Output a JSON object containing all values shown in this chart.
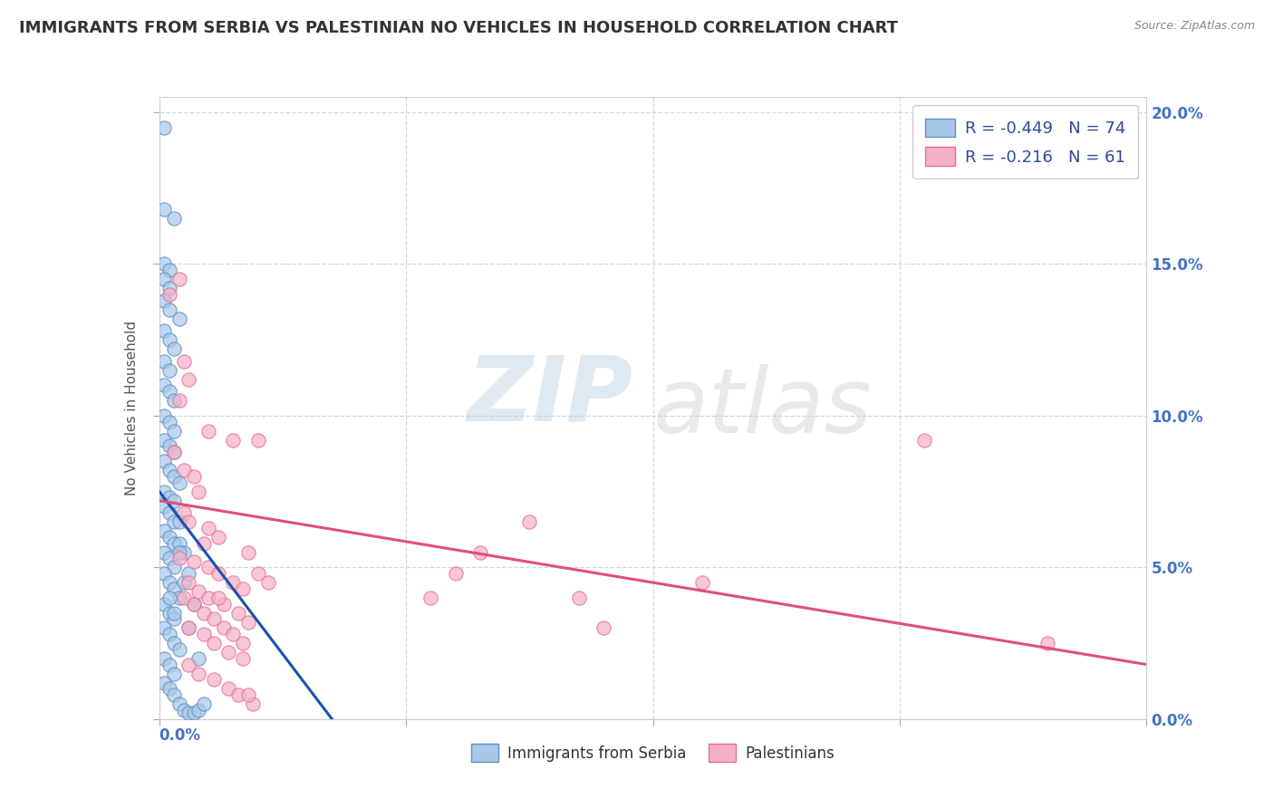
{
  "title": "IMMIGRANTS FROM SERBIA VS PALESTINIAN NO VEHICLES IN HOUSEHOLD CORRELATION CHART",
  "source_text": "Source: ZipAtlas.com",
  "ylabel": "No Vehicles in Household",
  "series1_label": "Immigrants from Serbia",
  "series2_label": "Palestinians",
  "series1_color": "#a8c8e8",
  "series2_color": "#f4b0c8",
  "series1_edge_color": "#6090c8",
  "series2_edge_color": "#e87090",
  "series1_line_color": "#1a50b0",
  "series2_line_color": "#e0507a",
  "xmin": 0.0,
  "xmax": 0.2,
  "ymin": 0.0,
  "ymax": 0.205,
  "background_color": "#ffffff",
  "grid_color": "#c8d8ea",
  "title_color": "#333333",
  "source_color": "#888888",
  "legend1_r": "-0.449",
  "legend1_n": "74",
  "legend2_r": "-0.216",
  "legend2_n": "61",
  "blue_line_x": [
    0.0,
    0.035
  ],
  "blue_line_y": [
    0.075,
    0.0
  ],
  "pink_line_x": [
    0.0,
    0.2
  ],
  "pink_line_y": [
    0.072,
    0.018
  ],
  "blue_scatter": [
    [
      0.001,
      0.195
    ],
    [
      0.001,
      0.168
    ],
    [
      0.003,
      0.165
    ],
    [
      0.001,
      0.15
    ],
    [
      0.002,
      0.148
    ],
    [
      0.001,
      0.145
    ],
    [
      0.002,
      0.142
    ],
    [
      0.001,
      0.138
    ],
    [
      0.002,
      0.135
    ],
    [
      0.004,
      0.132
    ],
    [
      0.001,
      0.128
    ],
    [
      0.002,
      0.125
    ],
    [
      0.003,
      0.122
    ],
    [
      0.001,
      0.118
    ],
    [
      0.002,
      0.115
    ],
    [
      0.001,
      0.11
    ],
    [
      0.002,
      0.108
    ],
    [
      0.003,
      0.105
    ],
    [
      0.001,
      0.1
    ],
    [
      0.002,
      0.098
    ],
    [
      0.003,
      0.095
    ],
    [
      0.001,
      0.092
    ],
    [
      0.002,
      0.09
    ],
    [
      0.003,
      0.088
    ],
    [
      0.001,
      0.085
    ],
    [
      0.002,
      0.082
    ],
    [
      0.003,
      0.08
    ],
    [
      0.004,
      0.078
    ],
    [
      0.001,
      0.075
    ],
    [
      0.002,
      0.073
    ],
    [
      0.001,
      0.07
    ],
    [
      0.002,
      0.068
    ],
    [
      0.003,
      0.065
    ],
    [
      0.001,
      0.062
    ],
    [
      0.002,
      0.06
    ],
    [
      0.003,
      0.058
    ],
    [
      0.001,
      0.055
    ],
    [
      0.002,
      0.053
    ],
    [
      0.003,
      0.05
    ],
    [
      0.001,
      0.048
    ],
    [
      0.002,
      0.045
    ],
    [
      0.003,
      0.043
    ],
    [
      0.004,
      0.04
    ],
    [
      0.001,
      0.038
    ],
    [
      0.002,
      0.035
    ],
    [
      0.003,
      0.033
    ],
    [
      0.001,
      0.03
    ],
    [
      0.002,
      0.028
    ],
    [
      0.003,
      0.025
    ],
    [
      0.004,
      0.023
    ],
    [
      0.001,
      0.02
    ],
    [
      0.002,
      0.018
    ],
    [
      0.003,
      0.015
    ],
    [
      0.001,
      0.012
    ],
    [
      0.002,
      0.01
    ],
    [
      0.003,
      0.008
    ],
    [
      0.004,
      0.005
    ],
    [
      0.005,
      0.003
    ],
    [
      0.006,
      0.002
    ],
    [
      0.007,
      0.002
    ],
    [
      0.008,
      0.003
    ],
    [
      0.009,
      0.005
    ],
    [
      0.002,
      0.04
    ],
    [
      0.003,
      0.035
    ],
    [
      0.004,
      0.058
    ],
    [
      0.005,
      0.045
    ],
    [
      0.006,
      0.03
    ],
    [
      0.004,
      0.065
    ],
    [
      0.005,
      0.055
    ],
    [
      0.006,
      0.048
    ],
    [
      0.007,
      0.038
    ],
    [
      0.008,
      0.02
    ],
    [
      0.003,
      0.072
    ],
    [
      0.004,
      0.055
    ]
  ],
  "pink_scatter": [
    [
      0.004,
      0.145
    ],
    [
      0.002,
      0.14
    ],
    [
      0.005,
      0.118
    ],
    [
      0.006,
      0.112
    ],
    [
      0.004,
      0.105
    ],
    [
      0.01,
      0.095
    ],
    [
      0.015,
      0.092
    ],
    [
      0.02,
      0.092
    ],
    [
      0.003,
      0.088
    ],
    [
      0.005,
      0.082
    ],
    [
      0.007,
      0.08
    ],
    [
      0.008,
      0.075
    ],
    [
      0.005,
      0.068
    ],
    [
      0.006,
      0.065
    ],
    [
      0.01,
      0.063
    ],
    [
      0.012,
      0.06
    ],
    [
      0.009,
      0.058
    ],
    [
      0.004,
      0.053
    ],
    [
      0.007,
      0.052
    ],
    [
      0.01,
      0.05
    ],
    [
      0.012,
      0.048
    ],
    [
      0.015,
      0.045
    ],
    [
      0.017,
      0.043
    ],
    [
      0.005,
      0.04
    ],
    [
      0.007,
      0.038
    ],
    [
      0.009,
      0.035
    ],
    [
      0.011,
      0.033
    ],
    [
      0.013,
      0.03
    ],
    [
      0.015,
      0.028
    ],
    [
      0.017,
      0.025
    ],
    [
      0.006,
      0.045
    ],
    [
      0.008,
      0.042
    ],
    [
      0.01,
      0.04
    ],
    [
      0.013,
      0.038
    ],
    [
      0.016,
      0.035
    ],
    [
      0.018,
      0.032
    ],
    [
      0.006,
      0.03
    ],
    [
      0.009,
      0.028
    ],
    [
      0.011,
      0.025
    ],
    [
      0.014,
      0.022
    ],
    [
      0.017,
      0.02
    ],
    [
      0.006,
      0.018
    ],
    [
      0.008,
      0.015
    ],
    [
      0.011,
      0.013
    ],
    [
      0.014,
      0.01
    ],
    [
      0.016,
      0.008
    ],
    [
      0.019,
      0.005
    ],
    [
      0.012,
      0.04
    ],
    [
      0.02,
      0.048
    ],
    [
      0.018,
      0.055
    ],
    [
      0.022,
      0.045
    ],
    [
      0.018,
      0.008
    ],
    [
      0.155,
      0.092
    ],
    [
      0.11,
      0.045
    ],
    [
      0.075,
      0.065
    ],
    [
      0.065,
      0.055
    ],
    [
      0.06,
      0.048
    ],
    [
      0.055,
      0.04
    ],
    [
      0.09,
      0.03
    ],
    [
      0.085,
      0.04
    ],
    [
      0.18,
      0.025
    ]
  ]
}
